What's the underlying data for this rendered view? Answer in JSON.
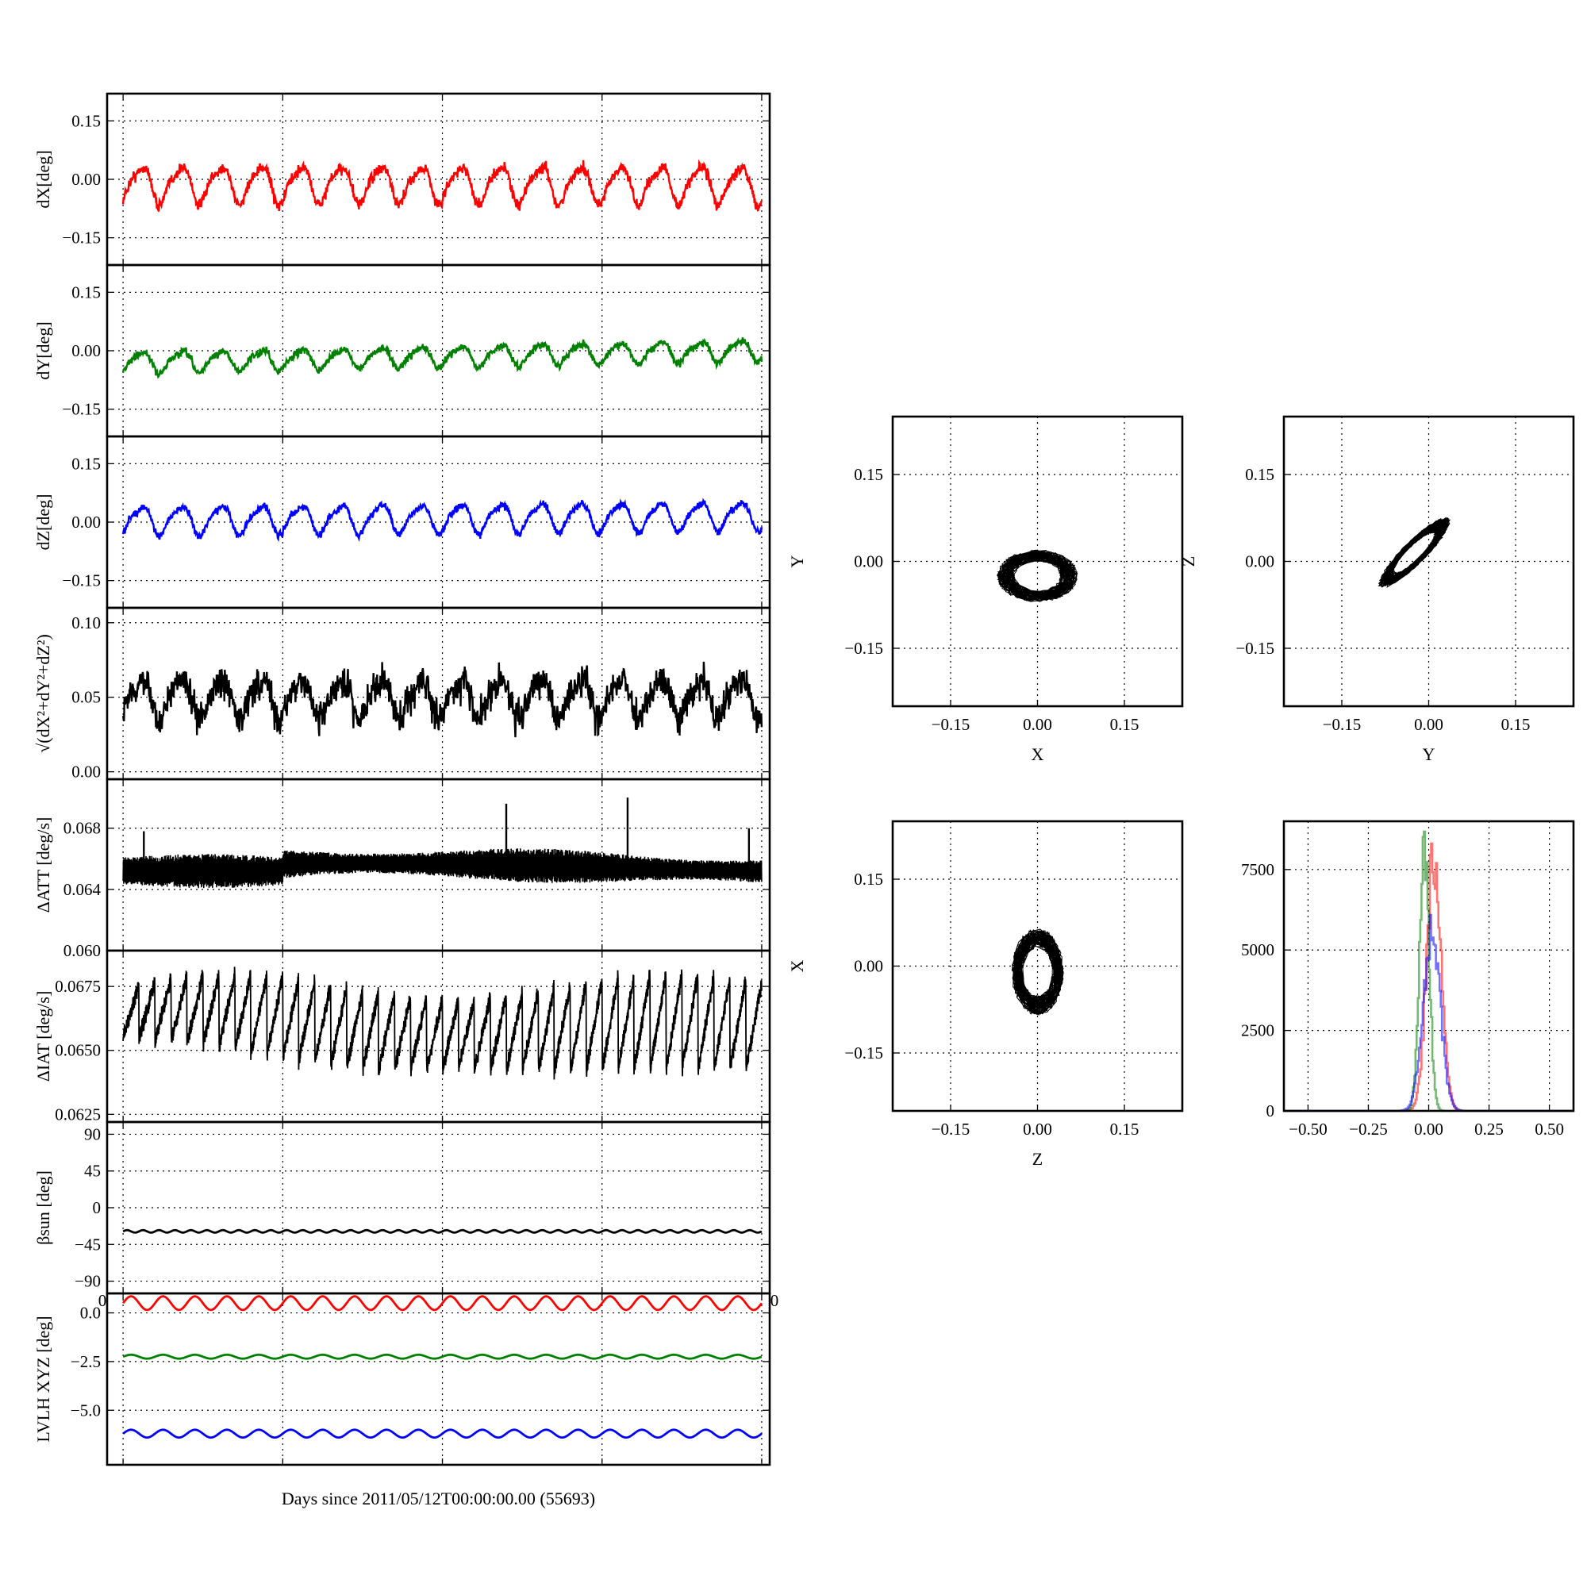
{
  "chart_data": [
    {
      "id": "dx",
      "type": "line",
      "ylabel": "dX[deg]",
      "ylim": [
        -0.22,
        0.22
      ],
      "yticks": [
        0.15,
        0.0,
        -0.15
      ],
      "yticklabels": [
        "0.15",
        "0.00",
        "−0.15"
      ],
      "xlim": [
        -0.1,
        4.05
      ],
      "xgrid": [
        0,
        1,
        2,
        3,
        4
      ],
      "series": [
        {
          "color": "#ff0000",
          "base": -0.012,
          "amp": 0.045,
          "period": 0.25,
          "noise": 0.012,
          "trend": 0.0
        }
      ]
    },
    {
      "id": "dy",
      "type": "line",
      "ylabel": "dY[deg]",
      "ylim": [
        -0.22,
        0.22
      ],
      "yticks": [
        0.15,
        0.0,
        -0.15
      ],
      "yticklabels": [
        "0.15",
        "0.00",
        "−0.15"
      ],
      "xlim": [
        -0.1,
        4.05
      ],
      "xgrid": [
        0,
        1,
        2,
        3,
        4
      ],
      "series": [
        {
          "color": "#008000",
          "base": -0.03,
          "amp": 0.025,
          "period": 0.25,
          "noise": 0.008,
          "trend": 0.008
        }
      ]
    },
    {
      "id": "dz",
      "type": "line",
      "ylabel": "dZ[deg]",
      "ylim": [
        -0.22,
        0.22
      ],
      "yticks": [
        0.15,
        0.0,
        -0.15
      ],
      "yticklabels": [
        "0.15",
        "0.00",
        "−0.15"
      ],
      "xlim": [
        -0.1,
        4.05
      ],
      "xgrid": [
        0,
        1,
        2,
        3,
        4
      ],
      "series": [
        {
          "color": "#0000ff",
          "base": 0.005,
          "amp": 0.035,
          "period": 0.25,
          "noise": 0.008,
          "trend": 0.003
        }
      ]
    },
    {
      "id": "mag",
      "type": "line",
      "ylabel": "√(dX²+dY²+dZ²)",
      "ylim": [
        -0.005,
        0.11
      ],
      "yticks": [
        0.1,
        0.05,
        0.0
      ],
      "yticklabels": [
        "0.10",
        "0.05",
        "0.00"
      ],
      "xlim": [
        -0.1,
        4.05
      ],
      "xgrid": [
        0,
        1,
        2,
        3,
        4
      ],
      "series": [
        {
          "color": "#000000",
          "base": 0.05,
          "amp": 0.012,
          "period": 0.25,
          "noise": 0.009,
          "trend": 0.0
        }
      ]
    },
    {
      "id": "datt",
      "type": "spiky",
      "ylabel": "ΔATT [deg/s]",
      "ylim": [
        0.06,
        0.0712
      ],
      "yticks": [
        0.068,
        0.064,
        0.06
      ],
      "yticklabels": [
        "0.068",
        "0.064",
        "0.060"
      ],
      "xlim": [
        -0.1,
        4.05
      ],
      "xgrid": [
        0,
        1,
        2,
        3,
        4
      ],
      "series": [
        {
          "color": "#000000",
          "base": 0.0652,
          "band": 0.0016,
          "spikes": [
            [
              2.4,
              0.0696
            ],
            [
              3.16,
              0.07
            ],
            [
              0.13,
              0.0678
            ],
            [
              3.92,
              0.068
            ]
          ]
        }
      ]
    },
    {
      "id": "diat",
      "type": "sawtooth",
      "ylabel": "ΔIAT [deg/s]",
      "ylim": [
        0.0622,
        0.0689
      ],
      "yticks": [
        0.0675,
        0.065,
        0.0625
      ],
      "yticklabels": [
        "0.0675",
        "0.0650",
        "0.0625"
      ],
      "xlim": [
        -0.1,
        4.05
      ],
      "xgrid": [
        0,
        1,
        2,
        3,
        4
      ],
      "series": [
        {
          "color": "#000000",
          "low": 0.0642,
          "high": 0.0675,
          "period": 0.1
        }
      ]
    },
    {
      "id": "bsun",
      "type": "line",
      "ylabel": "βsun [deg]",
      "ylim": [
        -105,
        105
      ],
      "yticks": [
        90,
        45,
        0,
        -45,
        -90
      ],
      "yticklabels": [
        "90",
        "45",
        "0",
        "−45",
        "−90"
      ],
      "xlim": [
        -0.1,
        4.05
      ],
      "xgrid": [
        0,
        1,
        2,
        3,
        4
      ],
      "series": [
        {
          "color": "#000000",
          "base": -29,
          "amp": 1.5,
          "period": 0.1,
          "noise": 0,
          "trend": 0
        }
      ]
    },
    {
      "id": "lvlh",
      "type": "line",
      "ylabel": "LVLH XYZ [deg]",
      "xlabel": "Days since 2011/05/12T00:00:00.00 (55693)",
      "ylim": [
        -7.8,
        1.0
      ],
      "yticks": [
        0.0,
        -2.5,
        -5.0
      ],
      "yticklabels": [
        "0.0",
        "−2.5",
        "−5.0"
      ],
      "xlim": [
        -0.1,
        4.05
      ],
      "xgrid": [
        0,
        1,
        2,
        3,
        4
      ],
      "xticklabels": [
        "0",
        "0"
      ],
      "series": [
        {
          "color": "#ff0000",
          "base": 0.5,
          "amp": 0.35,
          "period": 0.2,
          "noise": 0,
          "trend": 0
        },
        {
          "color": "#008000",
          "base": -2.25,
          "amp": 0.1,
          "period": 0.2,
          "noise": 0,
          "trend": 0
        },
        {
          "color": "#0000ff",
          "base": -6.2,
          "amp": 0.2,
          "period": 0.2,
          "noise": 0,
          "trend": 0
        }
      ]
    },
    {
      "id": "xy",
      "type": "scatter",
      "xlabel": "X",
      "ylabel": "Y",
      "xlim": [
        -0.25,
        0.25
      ],
      "ylim": [
        -0.25,
        0.25
      ],
      "ticks": [
        -0.15,
        0.0,
        0.15
      ],
      "ticklabels": [
        "−0.15",
        "0.00",
        "0.15"
      ],
      "cloud": {
        "cx": 0.0,
        "cy": -0.025,
        "rx": 0.07,
        "ry": 0.045,
        "tilt": 0
      }
    },
    {
      "id": "yz",
      "type": "scatter",
      "xlabel": "Y",
      "ylabel": "Z",
      "xlim": [
        -0.25,
        0.25
      ],
      "ylim": [
        -0.25,
        0.25
      ],
      "ticks": [
        -0.15,
        0.0,
        0.15
      ],
      "ticklabels": [
        "−0.15",
        "0.00",
        "0.15"
      ],
      "cloud": {
        "cx": -0.025,
        "cy": 0.015,
        "rx": 0.085,
        "ry": 0.02,
        "tilt": 0.78
      }
    },
    {
      "id": "zx",
      "type": "scatter",
      "xlabel": "Z",
      "ylabel": "X",
      "xlim": [
        -0.25,
        0.25
      ],
      "ylim": [
        -0.25,
        0.25
      ],
      "ticks": [
        -0.15,
        0.0,
        0.15
      ],
      "ticklabels": [
        "−0.15",
        "0.00",
        "0.15"
      ],
      "cloud": {
        "cx": 0.0,
        "cy": -0.01,
        "rx": 0.045,
        "ry": 0.075,
        "tilt": 0
      }
    },
    {
      "id": "hist",
      "type": "histogram",
      "xlim": [
        -0.6,
        0.6
      ],
      "ylim": [
        0,
        9000
      ],
      "xticks": [
        -0.5,
        -0.25,
        0.0,
        0.25,
        0.5
      ],
      "xticklabels": [
        "−0.50",
        "−0.25",
        "0.00",
        "0.25",
        "0.50"
      ],
      "yticks": [
        0,
        2500,
        5000,
        7500
      ],
      "yticklabels": [
        "0",
        "2500",
        "5000",
        "7500"
      ],
      "series": [
        {
          "color": "#ff0000",
          "center": 0.02,
          "sigma": 0.03,
          "peak": 7900
        },
        {
          "color": "#008000",
          "center": -0.02,
          "sigma": 0.02,
          "peak": 8300
        },
        {
          "color": "#0000ff",
          "center": 0.01,
          "sigma": 0.035,
          "peak": 5600
        }
      ]
    }
  ]
}
